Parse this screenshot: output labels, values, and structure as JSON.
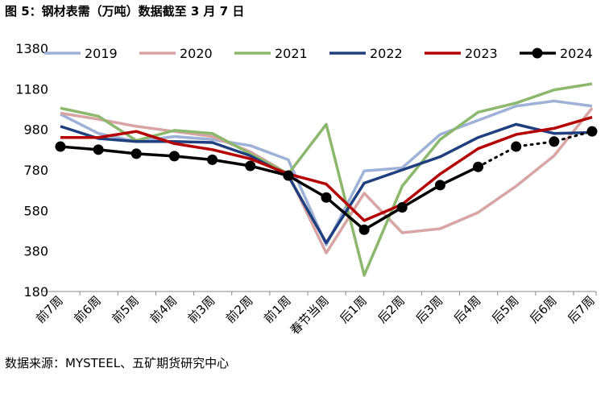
{
  "header": {
    "title": "图 5：钢材表需（万吨）数据截至 3 月 7 日"
  },
  "footer": {
    "source": "数据来源：MYSTEEL、五矿期货研究中心"
  },
  "colors": {
    "2019": "#9EB1D6",
    "2020": "#D9A4A4",
    "2021": "#8CB86D",
    "2022": "#1F3F7F",
    "2023": "#B40000",
    "2024": "#000000"
  },
  "chart_data": {
    "type": "line",
    "title": "钢材表需（万吨）",
    "categories": [
      "前7周",
      "前6周",
      "前5周",
      "前4周",
      "前3周",
      "前2周",
      "前1周",
      "春节当周",
      "后1周",
      "后2周",
      "后3周",
      "后4周",
      "后5周",
      "后6周",
      "后7周"
    ],
    "ylim": [
      180,
      1380
    ],
    "yticks": [
      180,
      380,
      580,
      780,
      980,
      1180,
      1380
    ],
    "grid": false,
    "legend": "top",
    "series": [
      {
        "name": "2019",
        "values": [
          1055,
          960,
          920,
          945,
          930,
          900,
          830,
          410,
          775,
          790,
          955,
          1025,
          1095,
          1120,
          1095
        ]
      },
      {
        "name": "2020",
        "values": [
          1060,
          1030,
          995,
          970,
          945,
          870,
          760,
          370,
          665,
          470,
          490,
          570,
          700,
          850,
          1085
        ]
      },
      {
        "name": "2021",
        "values": [
          1085,
          1045,
          925,
          975,
          960,
          860,
          760,
          1005,
          260,
          700,
          930,
          1065,
          1110,
          1175,
          1205
        ]
      },
      {
        "name": "2022",
        "values": [
          995,
          935,
          920,
          920,
          915,
          850,
          750,
          420,
          715,
          780,
          845,
          940,
          1005,
          960,
          965
        ]
      },
      {
        "name": "2023",
        "values": [
          940,
          940,
          970,
          910,
          880,
          835,
          760,
          710,
          530,
          610,
          760,
          885,
          955,
          985,
          1040
        ]
      },
      {
        "name": "2024",
        "values": [
          895,
          880,
          860,
          848,
          830,
          800,
          752,
          644,
          485,
          595,
          705,
          795,
          895,
          920,
          970
        ],
        "dotted_from": 11
      }
    ]
  }
}
